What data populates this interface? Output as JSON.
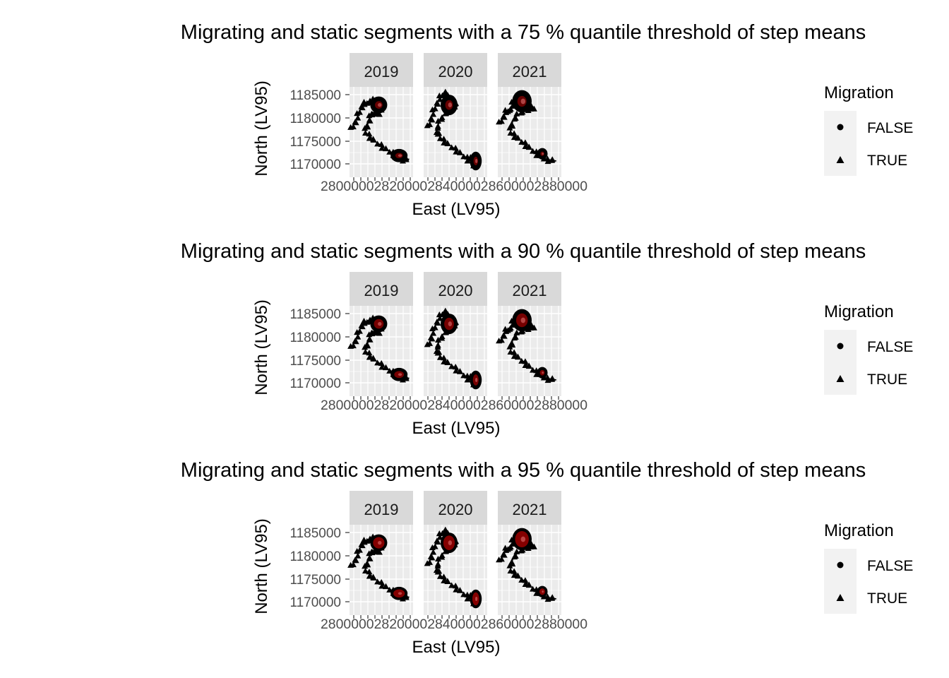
{
  "chart_data": [
    {
      "type": "scatter",
      "title": "Migrating and static segments with a 75 % quantile threshold of step means",
      "xlabel": "East (LV95)",
      "ylabel": "North (LV95)",
      "facets": [
        "2019",
        "2020",
        "2021"
      ],
      "y_ticks": [
        "1185000",
        "1180000",
        "1175000",
        "1170000"
      ],
      "x_tick_labels": "28000002820000284000028600002880000",
      "legend": {
        "title": "Migration",
        "items": [
          "FALSE",
          "TRUE"
        ],
        "shapes": [
          "circle",
          "triangle"
        ],
        "position": "right"
      },
      "density_intensity": 0.45,
      "grid": true
    },
    {
      "type": "scatter",
      "title": "Migrating and static segments with a 90 % quantile threshold of step means",
      "xlabel": "East (LV95)",
      "ylabel": "North (LV95)",
      "facets": [
        "2019",
        "2020",
        "2021"
      ],
      "y_ticks": [
        "1185000",
        "1180000",
        "1175000",
        "1170000"
      ],
      "x_tick_labels": "28000002820000284000028600002880000",
      "legend": {
        "title": "Migration",
        "items": [
          "FALSE",
          "TRUE"
        ],
        "shapes": [
          "circle",
          "triangle"
        ],
        "position": "right"
      },
      "density_intensity": 0.75,
      "grid": true
    },
    {
      "type": "scatter",
      "title": "Migrating and static segments with a 95 % quantile threshold of step means",
      "xlabel": "East (LV95)",
      "ylabel": "North (LV95)",
      "facets": [
        "2019",
        "2020",
        "2021"
      ],
      "y_ticks": [
        "1185000",
        "1180000",
        "1175000",
        "1170000"
      ],
      "x_tick_labels": "28000002820000284000028600002880000",
      "legend": {
        "title": "Migration",
        "items": [
          "FALSE",
          "TRUE"
        ],
        "shapes": [
          "circle",
          "triangle"
        ],
        "position": "right"
      },
      "density_intensity": 1.0,
      "grid": true
    }
  ],
  "colors": {
    "panel_bg": "#ebebeb",
    "grid": "#ffffff",
    "strip_bg": "#d9d9d9",
    "points": "#000000",
    "density_dark": "#8b0000",
    "density_light": "#e07070"
  }
}
